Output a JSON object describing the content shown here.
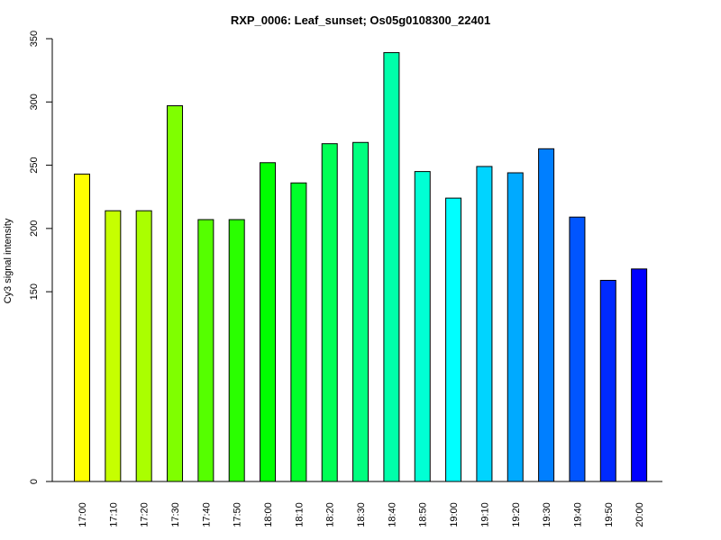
{
  "chart_data": {
    "type": "bar",
    "title": "RXP_0006: Leaf_sunset; Os05g0108300_22401",
    "xlabel": "",
    "ylabel": "Cy3 signal intensity",
    "y_ticks": [
      0,
      150,
      200,
      250,
      300,
      350
    ],
    "ylim": [
      0,
      350
    ],
    "grid": false,
    "legend": "none",
    "categories": [
      "17:00",
      "17:10",
      "17:20",
      "17:30",
      "17:40",
      "17:50",
      "18:00",
      "18:10",
      "18:20",
      "18:30",
      "18:40",
      "18:50",
      "19:00",
      "19:10",
      "19:20",
      "19:30",
      "19:40",
      "19:50",
      "20:00"
    ],
    "values": [
      243,
      214,
      214,
      297,
      207,
      207,
      252,
      236,
      267,
      268,
      339,
      245,
      224,
      249,
      244,
      263,
      209,
      159,
      168
    ],
    "colors": [
      "#FFFF00",
      "#C6FF00",
      "#AAFF00",
      "#7FFF00",
      "#55FF00",
      "#2AFF00",
      "#00FF00",
      "#00FF2A",
      "#00FF55",
      "#00FF7F",
      "#00FFAA",
      "#00FFD4",
      "#00FFFF",
      "#00D4FF",
      "#00AAFF",
      "#007FFF",
      "#0055FF",
      "#002AFF",
      "#0000FF"
    ]
  }
}
